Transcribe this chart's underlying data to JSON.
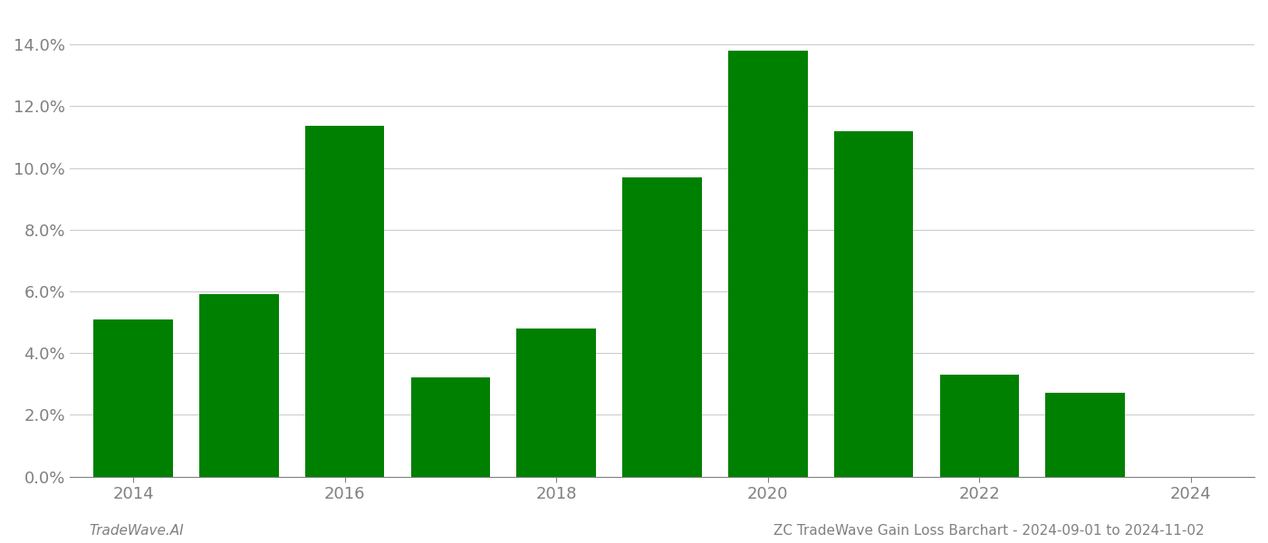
{
  "years": [
    2014,
    2015,
    2016,
    2017,
    2018,
    2019,
    2020,
    2021,
    2022,
    2023
  ],
  "values": [
    0.051,
    0.059,
    0.1135,
    0.032,
    0.048,
    0.097,
    0.138,
    0.112,
    0.033,
    0.027
  ],
  "bar_color": "#008000",
  "ylim": [
    0,
    0.15
  ],
  "yticks": [
    0.0,
    0.02,
    0.04,
    0.06,
    0.08,
    0.1,
    0.12,
    0.14
  ],
  "xticks": [
    2014,
    2016,
    2018,
    2020,
    2022,
    2024
  ],
  "xlim": [
    2013.4,
    2024.6
  ],
  "xlabel": "",
  "ylabel": "",
  "title": "",
  "footer_left": "TradeWave.AI",
  "footer_right": "ZC TradeWave Gain Loss Barchart - 2024-09-01 to 2024-11-02",
  "background_color": "#ffffff",
  "grid_color": "#cccccc",
  "text_color": "#808080",
  "bar_width": 0.75,
  "tick_fontsize": 13,
  "footer_fontsize": 11
}
